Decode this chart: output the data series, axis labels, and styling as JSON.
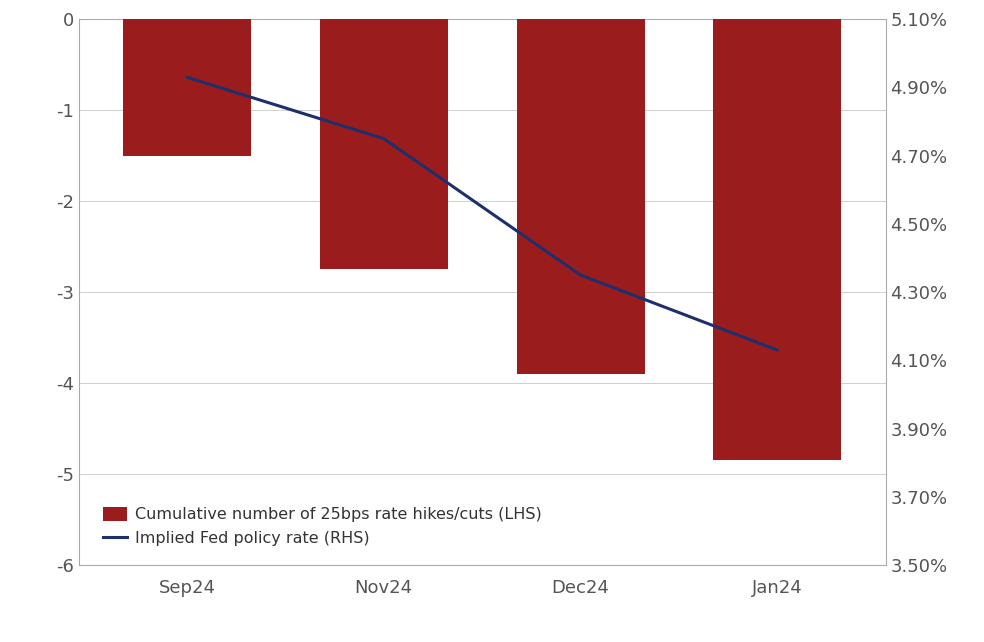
{
  "categories": [
    "Sep24",
    "Nov24",
    "Dec24",
    "Jan24"
  ],
  "bar_values": [
    -1.5,
    -2.75,
    -3.9,
    -4.85
  ],
  "line_values": [
    4.93,
    4.75,
    4.35,
    4.13
  ],
  "bar_color": "#9B1C1C",
  "line_color": "#1F2F6B",
  "lhs_ylim": [
    -6,
    0.0
  ],
  "lhs_yticks": [
    0,
    -1,
    -2,
    -3,
    -4,
    -5,
    -6
  ],
  "rhs_ylim": [
    3.5,
    5.1
  ],
  "rhs_yticks": [
    3.5,
    3.7,
    3.9,
    4.1,
    4.3,
    4.5,
    4.7,
    4.9,
    5.1
  ],
  "legend_bar": "Cumulative number of 25bps rate hikes/cuts (LHS)",
  "legend_line": "Implied Fed policy rate (RHS)",
  "background_color": "#ffffff",
  "bar_width": 0.65,
  "line_width": 2.2,
  "grid_color": "#d0d0d0",
  "axis_color": "#aaaaaa",
  "tick_color": "#555555",
  "font_color": "#333333",
  "tick_fontsize": 13,
  "legend_fontsize": 11.5
}
